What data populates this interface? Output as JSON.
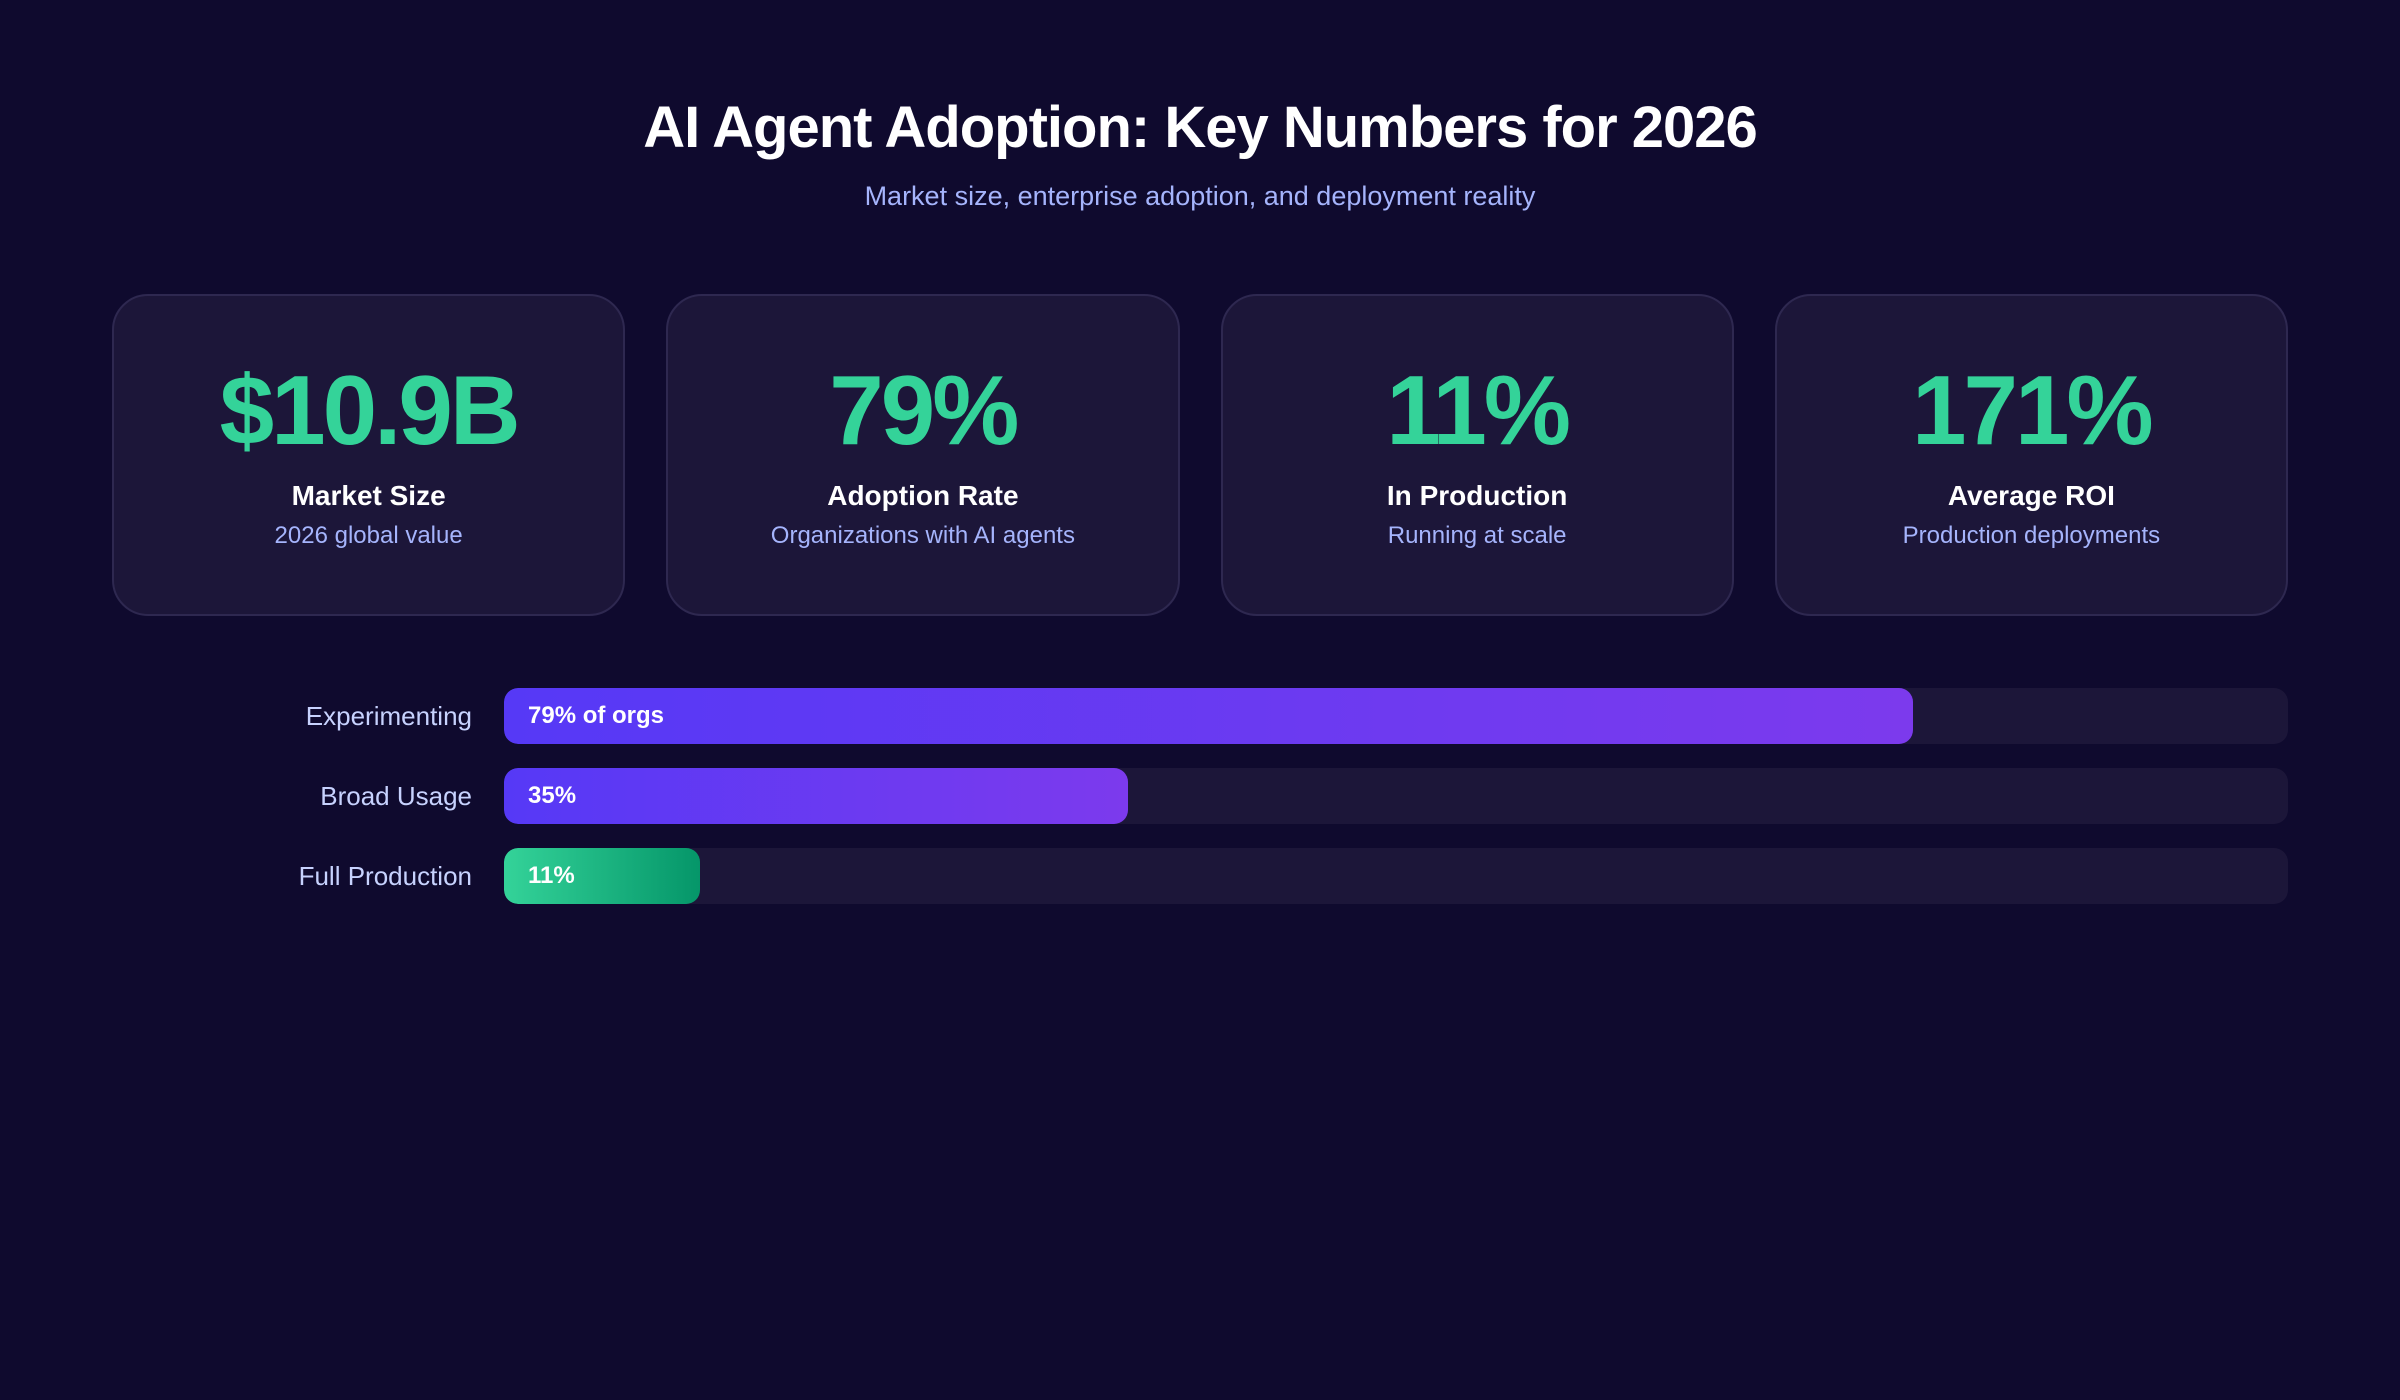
{
  "header": {
    "title": "AI Agent Adoption: Key Numbers for 2026",
    "subtitle": "Market size, enterprise adoption, and deployment reality"
  },
  "cards": [
    {
      "value": "$10.9B",
      "label": "Market Size",
      "sub": "2026 global value"
    },
    {
      "value": "79%",
      "label": "Adoption Rate",
      "sub": "Organizations with AI agents"
    },
    {
      "value": "11%",
      "label": "In Production",
      "sub": "Running at scale"
    },
    {
      "value": "171%",
      "label": "Average ROI",
      "sub": "Production deployments"
    }
  ],
  "bars": [
    {
      "label": "Experimenting",
      "value_text": "79% of orgs",
      "percent": 79,
      "style": "purple"
    },
    {
      "label": "Broad Usage",
      "value_text": "35%",
      "percent": 35,
      "style": "purple"
    },
    {
      "label": "Full Production",
      "value_text": "11%",
      "percent": 11,
      "style": "green"
    }
  ],
  "colors": {
    "background": "#0f0a2e",
    "card_background": "#1c1639",
    "accent_green": "#34d399",
    "bar_purple_start": "#5639f6",
    "bar_purple_end": "#7c3aed",
    "bar_green_start": "#34d399",
    "bar_green_end": "#059669",
    "subtitle": "#a5b4fc"
  }
}
